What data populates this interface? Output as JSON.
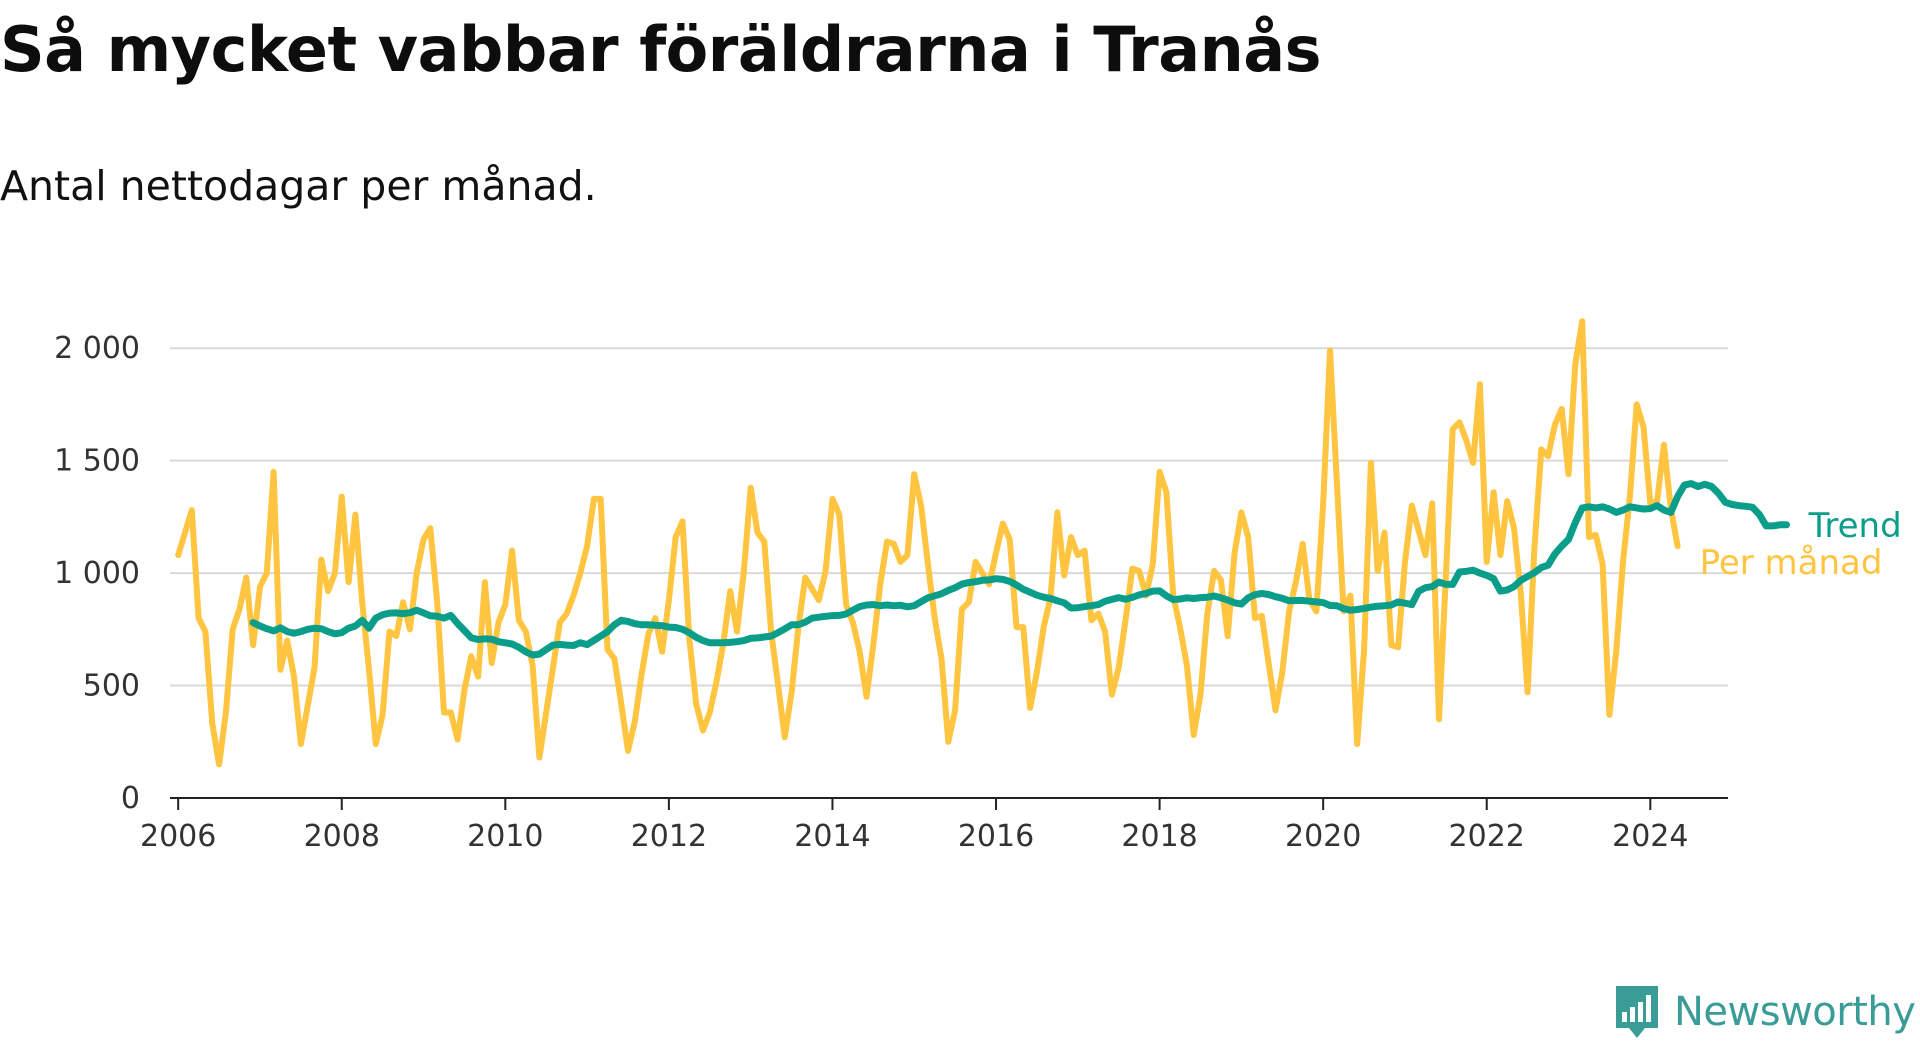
{
  "header": {
    "title": "Så mycket vabbar föräldrarna i Tranås",
    "subtitle": "Antal nettodagar per månad."
  },
  "brand": {
    "name": "Newsworthy",
    "icon": "bar-chart-pin-icon",
    "color": "#3a9c96"
  },
  "colors": {
    "monthly": "#ffc440",
    "trend": "#0a9e8a",
    "grid": "#d9d9d9",
    "axis": "#222222"
  },
  "chart_data": {
    "type": "line",
    "title": "Så mycket vabbar föräldrarna i Tranås",
    "subtitle": "Antal nettodagar per månad.",
    "xlabel": "",
    "ylabel": "",
    "xlim": [
      2005.9,
      2024.95
    ],
    "ylim": [
      0,
      2250
    ],
    "x_ticks": [
      2006,
      2008,
      2010,
      2012,
      2014,
      2016,
      2018,
      2020,
      2022,
      2024
    ],
    "x_tick_labels": [
      "2006",
      "2008",
      "2010",
      "2012",
      "2014",
      "2016",
      "2018",
      "2020",
      "2022",
      "2024"
    ],
    "y_ticks": [
      0,
      500,
      1000,
      1500,
      2000
    ],
    "y_tick_labels": [
      "0",
      "500",
      "1 000",
      "1 500",
      "2 000"
    ],
    "grid": true,
    "legend": "end-of-line labels",
    "series": [
      {
        "name": "Per månad",
        "color": "#ffc440",
        "x_start": "2006-01",
        "step": "month",
        "values": [
          1080,
          1180,
          1280,
          800,
          740,
          330,
          150,
          380,
          750,
          840,
          980,
          680,
          940,
          1000,
          1450,
          570,
          700,
          540,
          240,
          410,
          580,
          1060,
          920,
          1000,
          1340,
          960,
          1260,
          870,
          570,
          240,
          370,
          740,
          720,
          870,
          750,
          1000,
          1150,
          1200,
          870,
          380,
          380,
          260,
          480,
          630,
          540,
          960,
          600,
          780,
          860,
          1100,
          790,
          740,
          590,
          180,
          380,
          580,
          780,
          820,
          900,
          1000,
          1120,
          1330,
          1330,
          660,
          620,
          420,
          210,
          340,
          550,
          730,
          800,
          650,
          880,
          1160,
          1230,
          710,
          420,
          300,
          380,
          520,
          690,
          920,
          740,
          1010,
          1380,
          1180,
          1140,
          740,
          510,
          270,
          470,
          760,
          980,
          930,
          880,
          1010,
          1330,
          1260,
          860,
          780,
          650,
          450,
          680,
          950,
          1140,
          1130,
          1050,
          1080,
          1440,
          1300,
          1040,
          800,
          620,
          250,
          390,
          840,
          870,
          1050,
          1000,
          950,
          1090,
          1220,
          1150,
          760,
          760,
          400,
          560,
          760,
          890,
          1270,
          990,
          1160,
          1080,
          1100,
          790,
          820,
          740,
          460,
          580,
          790,
          1020,
          1010,
          900,
          1040,
          1450,
          1360,
          900,
          760,
          590,
          280,
          460,
          820,
          1010,
          970,
          720,
          1090,
          1270,
          1160,
          800,
          810,
          600,
          390,
          560,
          830,
          960,
          1130,
          880,
          830,
          1310,
          1990,
          1410,
          830,
          900,
          240,
          660,
          1490,
          1010,
          1180,
          680,
          670,
          1050,
          1300,
          1190,
          1080,
          1310,
          350,
          980,
          1640,
          1670,
          1590,
          1490,
          1840,
          1050,
          1360,
          1080,
          1320,
          1200,
          910,
          470,
          1110,
          1550,
          1520,
          1660,
          1730,
          1440,
          1930,
          2120,
          1160,
          1170,
          1040,
          370,
          650,
          1050,
          1340,
          1750,
          1650,
          1310,
          1320,
          1570,
          1290,
          1120
        ]
      },
      {
        "name": "Trend",
        "color": "#0a9e8a",
        "x_start": "2006-12",
        "step": "month",
        "values": [
          780,
          765,
          753,
          743,
          757,
          740,
          733,
          740,
          750,
          755,
          753,
          740,
          730,
          735,
          755,
          765,
          790,
          755,
          800,
          815,
          822,
          823,
          820,
          824,
          835,
          823,
          810,
          808,
          800,
          812,
          776,
          745,
          713,
          705,
          708,
          706,
          695,
          690,
          685,
          670,
          650,
          636,
          640,
          660,
          680,
          683,
          680,
          678,
          690,
          682,
          701,
          720,
          740,
          770,
          790,
          785,
          775,
          770,
          770,
          768,
          766,
          760,
          758,
          750,
          735,
          715,
          700,
          690,
          690,
          690,
          692,
          695,
          700,
          710,
          712,
          716,
          720,
          735,
          752,
          770,
          770,
          782,
          800,
          804,
          808,
          811,
          812,
          818,
          835,
          851,
          858,
          860,
          855,
          858,
          855,
          857,
          850,
          855,
          873,
          890,
          899,
          908,
          923,
          935,
          951,
          958,
          962,
          968,
          970,
          975,
          972,
          963,
          947,
          928,
          915,
          902,
          893,
          887,
          877,
          868,
          845,
          846,
          851,
          855,
          860,
          875,
          883,
          891,
          884,
          892,
          903,
          910,
          920,
          921,
          899,
          882,
          885,
          890,
          887,
          891,
          893,
          898,
          890,
          880,
          868,
          862,
          890,
          904,
          910,
          905,
          895,
          888,
          877,
          878,
          878,
          875,
          872,
          869,
          856,
          855,
          842,
          835,
          838,
          843,
          849,
          853,
          855,
          858,
          872,
          866,
          860,
          919,
          935,
          940,
          960,
          950,
          950,
          1005,
          1008,
          1013,
          1000,
          990,
          975,
          920,
          925,
          940,
          968,
          985,
          1002,
          1025,
          1035,
          1085,
          1120,
          1150,
          1225,
          1290,
          1295,
          1290,
          1295,
          1285,
          1270,
          1280,
          1295,
          1290,
          1285,
          1287,
          1300,
          1280,
          1270,
          1340,
          1392,
          1398,
          1385,
          1395,
          1385,
          1355,
          1315,
          1305,
          1300,
          1297,
          1293,
          1260,
          1210,
          1210,
          1215,
          1215
        ]
      }
    ]
  }
}
